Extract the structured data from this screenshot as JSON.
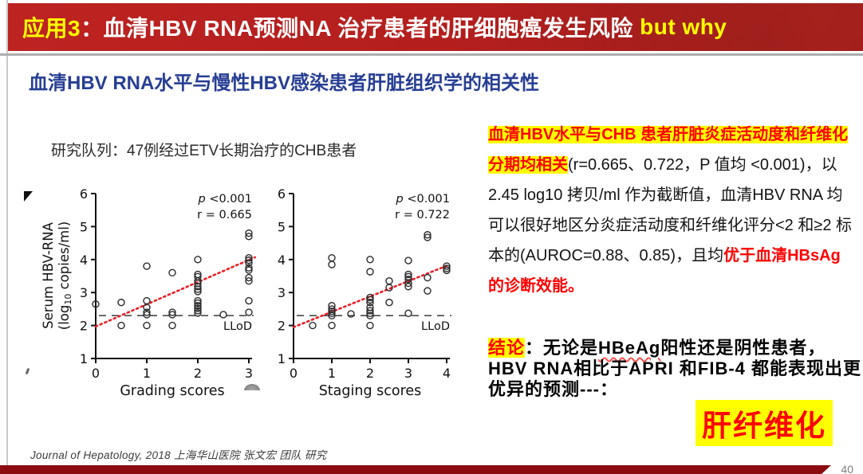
{
  "banner": {
    "app_label": "应用3",
    "title": "：血清HBV RNA预测NA 治疗患者的肝细胞癌发生风险",
    "emphasis": " but why"
  },
  "subtitle": "血清HBV RNA水平与慢性HBV感染患者肝脏组织学的相关性",
  "cohort_label": "研究队列：47例经过ETV长期治疗的CHB患者",
  "findings": {
    "highlight": "血清HBV水平与CHB 患者肝脏炎症活动度和纤维化分期均相关",
    "body": "(r=0.665、0.722，P 值均 <0.001)，以2.45 log10 拷贝/ml 作为截断值，血清HBV RNA 均可以很好地区分炎症活动度和纤维化评分<2 和≥2 标本的(AUROC=0.88、0.85)，且均",
    "emphasis": "优于血清HBsAg 的诊断效能。"
  },
  "conclusion": {
    "label": "结论",
    "pre": "：无论是",
    "hbeag": "HBeAg",
    "post": "阳性还是阴性患者，HBV RNA相比于APRI 和FIB-4 都能表现出更优异的预测---：",
    "callout": "肝纤维化"
  },
  "footer": {
    "citation": "Journal of Hepatology, 2018 上海华山医院 张文宏 团队 研究",
    "page_number": "40"
  },
  "colors": {
    "banner_red": "#b32020",
    "highlight_yellow": "#ffff00",
    "emphasis_red": "#ff0000",
    "subtitle_blue": "#273e94",
    "bottom_bar_red": "#8c0c12",
    "trend_red": "#ed1c24"
  },
  "chart_data": [
    {
      "type": "scatter",
      "xlabel": "Grading scores",
      "ylabel": "Serum HBV-RNA",
      "ylabel2": "(log10 copies/ml)",
      "xlim": [
        0,
        3
      ],
      "ylim": [
        1,
        6
      ],
      "xticks": [
        0,
        1,
        2,
        3
      ],
      "yticks": [
        1,
        2,
        3,
        4,
        5,
        6
      ],
      "annotations": [
        "p <0.001",
        "r = 0.665"
      ],
      "llod": {
        "value": 2.3,
        "label": "LLoD"
      },
      "trend": {
        "from": [
          0,
          1.97
        ],
        "to": [
          3.12,
          4.07
        ],
        "color": "#ed1c24"
      },
      "points": [
        [
          0,
          2.65
        ],
        [
          0.5,
          2.7
        ],
        [
          0.5,
          2.0
        ],
        [
          1,
          3.8
        ],
        [
          1,
          2.75
        ],
        [
          1,
          2.55
        ],
        [
          1,
          2.4
        ],
        [
          1,
          2.33
        ],
        [
          1,
          2.0
        ],
        [
          1.5,
          3.6
        ],
        [
          1.5,
          2.4
        ],
        [
          1.5,
          2.33
        ],
        [
          1.5,
          2.0
        ],
        [
          2,
          4.0
        ],
        [
          2,
          3.55
        ],
        [
          2,
          3.48
        ],
        [
          2,
          3.35
        ],
        [
          2,
          3.28
        ],
        [
          2,
          3.18
        ],
        [
          2,
          3.1
        ],
        [
          2,
          3.03
        ],
        [
          2,
          2.75
        ],
        [
          2,
          2.68
        ],
        [
          2,
          2.6
        ],
        [
          2,
          2.52
        ],
        [
          2,
          2.45
        ],
        [
          2,
          2.38
        ],
        [
          2.5,
          2.33
        ],
        [
          3,
          4.8
        ],
        [
          3,
          4.7
        ],
        [
          3,
          4.05
        ],
        [
          3,
          3.98
        ],
        [
          3,
          3.9
        ],
        [
          3,
          3.75
        ],
        [
          3,
          3.68
        ],
        [
          3,
          3.45
        ],
        [
          3,
          3.35
        ],
        [
          3,
          2.75
        ],
        [
          3,
          2.4
        ]
      ]
    },
    {
      "type": "scatter",
      "xlabel": "Staging scores",
      "ylabel": "",
      "ylabel2": "",
      "xlim": [
        0,
        4
      ],
      "ylim": [
        1,
        6
      ],
      "xticks": [
        0,
        1,
        2,
        3,
        4
      ],
      "yticks": [
        1,
        2,
        3,
        4,
        5,
        6
      ],
      "annotations": [
        "p <0.001",
        "r = 0.722"
      ],
      "llod": {
        "value": 2.3,
        "label": "LLoD"
      },
      "trend": {
        "from": [
          0,
          1.95
        ],
        "to": [
          4.02,
          3.82
        ],
        "color": "#ed1c24"
      },
      "points": [
        [
          0.5,
          2.0
        ],
        [
          1,
          4.05
        ],
        [
          1,
          3.85
        ],
        [
          1,
          2.6
        ],
        [
          1,
          2.5
        ],
        [
          1,
          2.43
        ],
        [
          1,
          2.37
        ],
        [
          1,
          2.3
        ],
        [
          1,
          2.0
        ],
        [
          1.5,
          2.35
        ],
        [
          2,
          4.0
        ],
        [
          2,
          3.63
        ],
        [
          2,
          2.85
        ],
        [
          2,
          2.78
        ],
        [
          2,
          2.7
        ],
        [
          2,
          2.55
        ],
        [
          2,
          2.45
        ],
        [
          2,
          2.37
        ],
        [
          2,
          2.3
        ],
        [
          2,
          2.0
        ],
        [
          2.5,
          3.35
        ],
        [
          2.5,
          3.15
        ],
        [
          2.5,
          2.7
        ],
        [
          3,
          3.97
        ],
        [
          3,
          3.55
        ],
        [
          3,
          3.48
        ],
        [
          3,
          3.4
        ],
        [
          3,
          3.28
        ],
        [
          3,
          3.18
        ],
        [
          3,
          2.37
        ],
        [
          3.5,
          4.75
        ],
        [
          3.5,
          4.67
        ],
        [
          3.5,
          3.45
        ],
        [
          3.5,
          3.05
        ],
        [
          4,
          3.8
        ],
        [
          4,
          3.73
        ],
        [
          4,
          3.67
        ]
      ]
    }
  ]
}
